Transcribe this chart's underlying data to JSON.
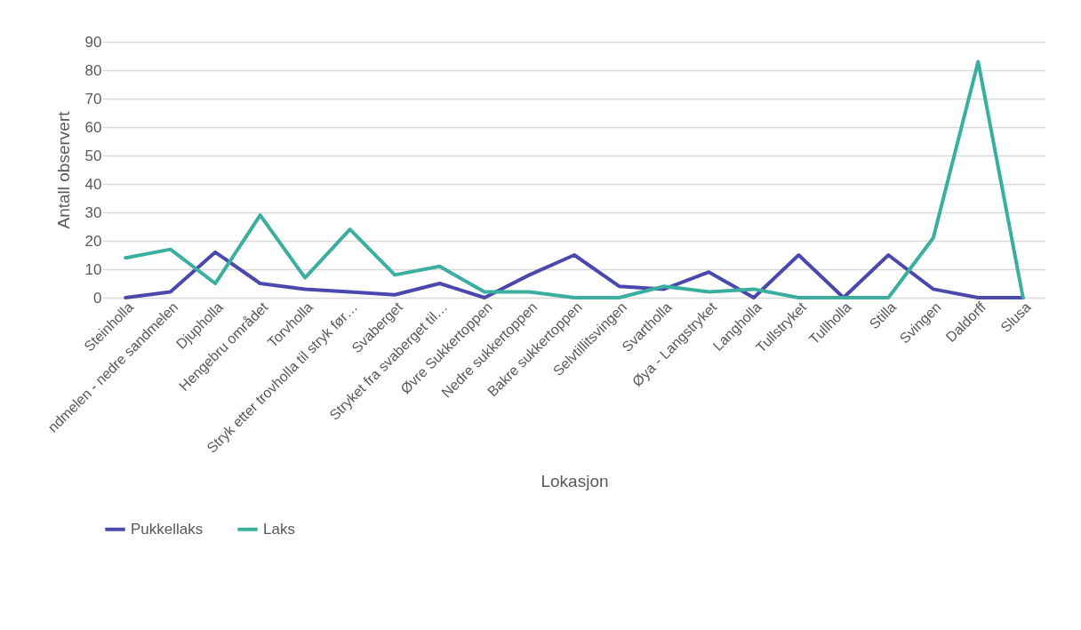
{
  "chart_data": {
    "type": "line",
    "xlabel": "Lokasjon",
    "ylabel": "Antall observert",
    "categories": [
      "Steinholla",
      "ndmelen - nedre sandmelen",
      "Djupholla",
      "Hengebru området",
      "Torvholla",
      "Stryk etter trovholla til stryk før…",
      "Svaberget",
      "Stryket fra svaberget til…",
      "Øvre Sukkertoppen",
      "Nedre sukkertoppen",
      "Bakre sukkertoppen",
      "Selvtillitsvingen",
      "Svartholla",
      "Øya - Langstryket",
      "Langholla",
      "Tullstryket",
      "Tullholla",
      "Stilla",
      "Svingen",
      "Daldorff",
      "Slusa"
    ],
    "series": [
      {
        "name": "Pukkellaks",
        "color": "#4b48ad",
        "values": [
          0,
          2,
          16,
          5,
          3,
          2,
          1,
          5,
          0,
          8,
          15,
          4,
          3,
          9,
          0,
          15,
          0,
          15,
          3,
          0,
          0
        ]
      },
      {
        "name": "Laks",
        "color": "#3aae9f",
        "values": [
          14,
          17,
          5,
          29,
          7,
          24,
          8,
          11,
          2,
          2,
          0,
          0,
          4,
          2,
          3,
          0,
          0,
          0,
          21,
          83,
          0
        ]
      }
    ],
    "ylim": [
      0,
      90
    ],
    "yticks": [
      0,
      10,
      20,
      30,
      40,
      50,
      60,
      70,
      80,
      90
    ],
    "grid": "y",
    "legend": "bottom",
    "marker": "none",
    "line_style": "solid"
  }
}
